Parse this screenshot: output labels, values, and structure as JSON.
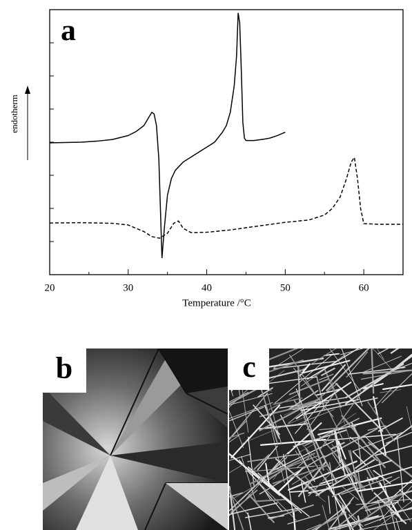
{
  "chart_data": {
    "type": "line",
    "panel_label": "a",
    "xlabel": "Temperature /°C",
    "ylabel": "endotherm",
    "xlim": [
      20,
      65
    ],
    "xticks": [
      20,
      30,
      40,
      50,
      60
    ],
    "xminorticks": [
      25,
      35,
      45,
      55,
      65
    ],
    "ylim": [
      0,
      8
    ],
    "yticks": [
      1,
      2,
      3,
      4,
      5,
      6,
      7
    ],
    "series": [
      {
        "color": "#000000",
        "style": "solid",
        "x": [
          20,
          22,
          24,
          26,
          28,
          30,
          31,
          32,
          32.5,
          33,
          33.3,
          33.6,
          33.9,
          34.1,
          34.3,
          34.6,
          35,
          35.5,
          36,
          37,
          38,
          39,
          40,
          41,
          42,
          42.5,
          43,
          43.5,
          43.8,
          44,
          44.2,
          44.4,
          44.6,
          44.8,
          45,
          46,
          47,
          48,
          49,
          50
        ],
        "values": [
          3.98,
          3.99,
          4.0,
          4.03,
          4.08,
          4.2,
          4.32,
          4.5,
          4.7,
          4.9,
          4.85,
          4.5,
          3.5,
          2.0,
          0.5,
          1.4,
          2.4,
          2.9,
          3.15,
          3.4,
          3.55,
          3.7,
          3.85,
          4.0,
          4.3,
          4.5,
          4.9,
          5.7,
          6.6,
          7.9,
          7.6,
          6.2,
          4.6,
          4.12,
          4.05,
          4.05,
          4.08,
          4.12,
          4.2,
          4.3
        ]
      },
      {
        "color": "#000000",
        "style": "dashed",
        "x": [
          20,
          24,
          28,
          30,
          32,
          33,
          34,
          35,
          35.8,
          36.4,
          37,
          38,
          40,
          43,
          46,
          50,
          53,
          55,
          56,
          57,
          57.8,
          58.4,
          58.8,
          59.2,
          59.6,
          60,
          62,
          65
        ],
        "values": [
          1.56,
          1.57,
          1.55,
          1.5,
          1.3,
          1.15,
          1.1,
          1.25,
          1.55,
          1.62,
          1.4,
          1.27,
          1.28,
          1.35,
          1.45,
          1.58,
          1.65,
          1.8,
          2.0,
          2.35,
          2.9,
          3.4,
          3.54,
          2.9,
          2.0,
          1.54,
          1.52,
          1.52
        ]
      }
    ]
  },
  "images": [
    {
      "label": "b"
    },
    {
      "label": "c"
    }
  ]
}
